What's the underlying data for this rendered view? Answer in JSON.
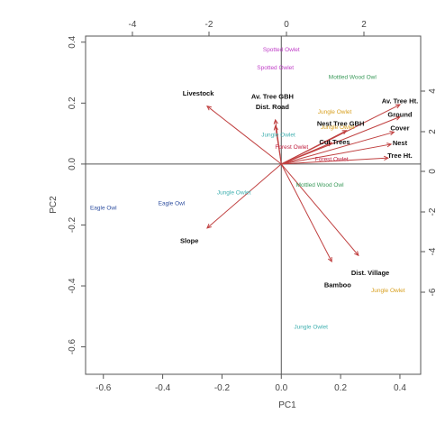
{
  "chart_data": {
    "type": "scatter",
    "subtype": "pca-biplot",
    "title": "",
    "xlabel": "PC1",
    "ylabel": "PC2",
    "xlim": [
      -0.66,
      0.47
    ],
    "ylim": [
      -0.69,
      0.42
    ],
    "x_ticks": [
      "-0.6",
      "-0.4",
      "-0.2",
      "0.0",
      "0.2",
      "0.4"
    ],
    "y_ticks": [
      "0.4",
      "0.2",
      "0.0",
      "-0.2",
      "-0.4",
      "-0.6"
    ],
    "top_ticks": [
      "-4",
      "-2",
      "0",
      "2"
    ],
    "right_ticks": [
      "4",
      "2",
      "0",
      "-2",
      "-4",
      "-6"
    ],
    "grid": false,
    "zero_lines": true,
    "observations": [
      {
        "label": "Spotted Owlet",
        "x": 0.0,
        "y": 0.37,
        "color": "#c040c8"
      },
      {
        "label": "Spotted Owlet",
        "x": -0.02,
        "y": 0.31,
        "color": "#c040c8"
      },
      {
        "label": "Mottled Wood Owl",
        "x": 0.24,
        "y": 0.28,
        "color": "#3a9a5a"
      },
      {
        "label": "Jungle Owlet",
        "x": 0.18,
        "y": 0.165,
        "color": "#d8a020"
      },
      {
        "label": "Jungle Owlet",
        "x": 0.19,
        "y": 0.115,
        "color": "#d8a020"
      },
      {
        "label": "Jungle Owlet",
        "x": 0.36,
        "y": -0.42,
        "color": "#d8a020"
      },
      {
        "label": "Jungle Owlet",
        "x": 0.1,
        "y": -0.54,
        "color": "#40b0b0"
      },
      {
        "label": "Jungle Owlet",
        "x": -0.01,
        "y": 0.09,
        "color": "#40b0b0"
      },
      {
        "label": "Jungle Owlet",
        "x": -0.16,
        "y": -0.1,
        "color": "#40b0b0"
      },
      {
        "label": "Forest Owlet",
        "x": 0.035,
        "y": 0.05,
        "color": "#c02040"
      },
      {
        "label": "Forest Owlet",
        "x": 0.17,
        "y": 0.01,
        "color": "#c02040"
      },
      {
        "label": "Mottled Wood Owl",
        "x": 0.13,
        "y": -0.075,
        "color": "#3a9a5a"
      },
      {
        "label": "Eagle Owl",
        "x": -0.6,
        "y": -0.15,
        "color": "#3050a0"
      },
      {
        "label": "Eagle Owl",
        "x": -0.37,
        "y": -0.135,
        "color": "#3050a0"
      }
    ],
    "loadings": [
      {
        "name": "Livestock",
        "x": -0.25,
        "y": 0.19,
        "label_x": -0.28,
        "label_y": 0.225
      },
      {
        "name": "Av. Tree GBH",
        "x": -0.02,
        "y": 0.145,
        "label_x": -0.03,
        "label_y": 0.215
      },
      {
        "name": "Dist. Road",
        "x": -0.02,
        "y": 0.125,
        "label_x": -0.03,
        "label_y": 0.18
      },
      {
        "name": "Nest Tree GBH",
        "x": 0.22,
        "y": 0.11,
        "label_x": 0.2,
        "label_y": 0.125
      },
      {
        "name": "Cut Trees",
        "x": 0.17,
        "y": 0.07,
        "label_x": 0.18,
        "label_y": 0.065
      },
      {
        "name": "Av. Tree Ht.",
        "x": 0.4,
        "y": 0.195,
        "label_x": 0.4,
        "label_y": 0.2
      },
      {
        "name": "Ground",
        "x": 0.4,
        "y": 0.155,
        "label_x": 0.4,
        "label_y": 0.155
      },
      {
        "name": "Cover",
        "x": 0.38,
        "y": 0.105,
        "label_x": 0.4,
        "label_y": 0.11
      },
      {
        "name": "Nest",
        "x": 0.37,
        "y": 0.065,
        "label_x": 0.4,
        "label_y": 0.062
      },
      {
        "name": "Tree Ht.",
        "x": 0.36,
        "y": 0.02,
        "label_x": 0.4,
        "label_y": 0.02
      },
      {
        "name": "Slope",
        "x": -0.25,
        "y": -0.21,
        "label_x": -0.31,
        "label_y": -0.26
      },
      {
        "name": "Dist. Village",
        "x": 0.26,
        "y": -0.3,
        "label_x": 0.3,
        "label_y": -0.365
      },
      {
        "name": "Bamboo",
        "x": 0.17,
        "y": -0.32,
        "label_x": 0.19,
        "label_y": -0.405
      }
    ]
  }
}
